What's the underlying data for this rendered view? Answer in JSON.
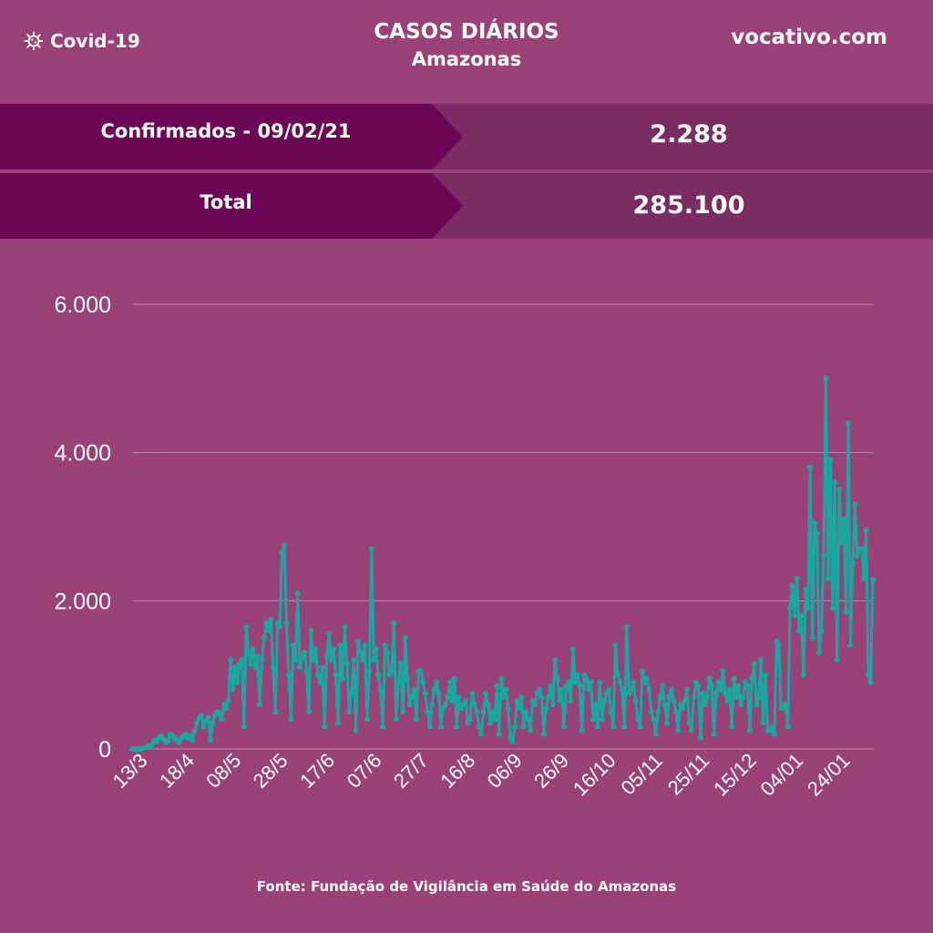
{
  "header": {
    "brand_label": "Covid-19",
    "brand_icon": "virus-icon",
    "title": "CASOS DIÁRIOS",
    "subtitle": "Amazonas",
    "site": "vocativo.com"
  },
  "summary": {
    "confirmed_label": "Confirmados - 09/02/21",
    "confirmed_value": "2.288",
    "total_label": "Total",
    "total_value": "285.100"
  },
  "source": "Fonte: Fundação de Vigilância em Saúde do Amazonas",
  "colors": {
    "background": "#9a4178",
    "label_band": "#6c0756",
    "value_band": "#7a2c63",
    "series": "#17a9a0",
    "grid": "#c08aac"
  },
  "chart_data": {
    "type": "line",
    "title": "CASOS DIÁRIOS",
    "subtitle": "Amazonas",
    "xlabel": "",
    "ylabel": "",
    "ylim": [
      0,
      6000
    ],
    "yticks": [
      0,
      2000,
      4000,
      6000
    ],
    "ytick_labels": [
      "0",
      "2.000",
      "4.000",
      "6.000"
    ],
    "xtick_labels": [
      "13/3",
      "18/4",
      "08/5",
      "28/5",
      "17/6",
      "07/6",
      "27/7",
      "16/8",
      "06/9",
      "26/9",
      "16/10",
      "05/11",
      "25/11",
      "15/12",
      "04/01",
      "24/01"
    ],
    "grid": true,
    "legend": "none",
    "series": [
      {
        "values": [
          0,
          0,
          0,
          0,
          0,
          10,
          20,
          40,
          30,
          60,
          120,
          100,
          150,
          180,
          130,
          90,
          110,
          200,
          180,
          150,
          120,
          90,
          150,
          170,
          200,
          150,
          180,
          120,
          250,
          350,
          420,
          450,
          300,
          380,
          420,
          120,
          350,
          450,
          500,
          480,
          400,
          600,
          550,
          650,
          1200,
          800,
          1100,
          900,
          1150,
          1200,
          300,
          1650,
          1300,
          1150,
          1350,
          1100,
          1250,
          600,
          1200,
          1500,
          1700,
          1600,
          1750,
          1100,
          500,
          1700,
          1650,
          2650,
          2750,
          1700,
          1000,
          400,
          1400,
          1200,
          2100,
          1100,
          1250,
          1300,
          1050,
          500,
          1600,
          1200,
          1350,
          1000,
          900,
          1100,
          300,
          1250,
          1550,
          1200,
          1350,
          1000,
          350,
          1400,
          950,
          1650,
          1150,
          500,
          750,
          1200,
          250,
          1450,
          1300,
          1200,
          1400,
          400,
          1050,
          2700,
          1200,
          1350,
          1000,
          800,
          300,
          1400,
          1300,
          1000,
          1050,
          1700,
          400,
          900,
          1150,
          500,
          1500,
          950,
          600,
          700,
          800,
          400,
          1050,
          1050,
          900,
          750,
          500,
          300,
          600,
          800,
          900,
          750,
          300,
          550,
          600,
          700,
          900,
          650,
          950,
          300,
          700,
          550,
          600,
          650,
          350,
          400,
          750,
          600,
          500,
          300,
          200,
          500,
          750,
          600,
          350,
          500,
          400,
          850,
          200,
          950,
          700,
          800,
          550,
          150,
          100,
          300,
          650,
          550,
          700,
          300,
          500,
          400,
          250,
          650,
          600,
          750,
          800,
          700,
          200,
          550,
          700,
          850,
          600,
          1200,
          950,
          650,
          800,
          300,
          850,
          900,
          650,
          1350,
          900,
          1000,
          850,
          250,
          1000,
          950,
          800,
          900,
          400,
          600,
          300,
          900,
          400,
          650,
          750,
          800,
          500,
          300,
          1400,
          1000,
          900,
          800,
          300,
          1650,
          750,
          800,
          900,
          650,
          400,
          300,
          1050,
          900,
          950,
          800,
          500,
          400,
          200,
          500,
          700,
          850,
          600,
          350,
          700,
          800,
          650,
          500,
          250,
          600,
          550,
          650,
          800,
          350,
          250,
          700,
          900,
          850,
          150,
          750,
          600,
          700,
          950,
          850,
          200,
          750,
          900,
          800,
          1050,
          750,
          650,
          800,
          300,
          950,
          700,
          850,
          600,
          700,
          900,
          850,
          250,
          950,
          1150,
          600,
          700,
          1200,
          350,
          1000,
          250,
          250,
          300,
          200,
          1450,
          1400,
          550,
          550,
          600,
          300,
          1900,
          2200,
          1800,
          2300,
          1600,
          1800,
          1000,
          2150,
          1900,
          3800,
          1500,
          3050,
          2900,
          1300,
          1600,
          2600,
          5000,
          2300,
          3900,
          1900,
          3600,
          1200,
          3500,
          2800,
          3100,
          1850,
          4400,
          1400,
          2500,
          3300,
          2600,
          2700,
          2700,
          2300,
          2950,
          1000,
          900,
          2288
        ]
      }
    ]
  }
}
